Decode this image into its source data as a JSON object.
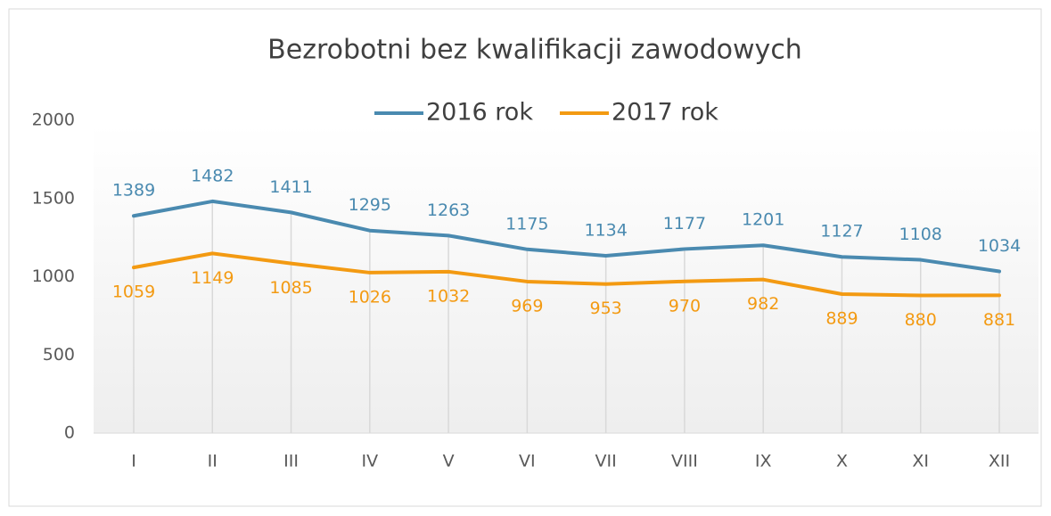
{
  "chart_data": {
    "type": "line",
    "title": "Bezrobotni bez kwalifikacji zawodowych",
    "categories": [
      "I",
      "II",
      "III",
      "IV",
      "V",
      "VI",
      "VII",
      "VIII",
      "IX",
      "X",
      "XI",
      "XII"
    ],
    "series": [
      {
        "name": "2016 rok",
        "color": "#4a8ab0",
        "values": [
          1389,
          1482,
          1411,
          1295,
          1263,
          1175,
          1134,
          1177,
          1201,
          1127,
          1108,
          1034
        ]
      },
      {
        "name": "2017 rok",
        "color": "#f39a12",
        "values": [
          1059,
          1149,
          1085,
          1026,
          1032,
          969,
          953,
          970,
          982,
          889,
          880,
          881
        ]
      }
    ],
    "ylim": [
      0,
      2000
    ],
    "yticks": [
      0,
      500,
      1000,
      1500,
      2000
    ],
    "grid": false,
    "legend": "top"
  }
}
